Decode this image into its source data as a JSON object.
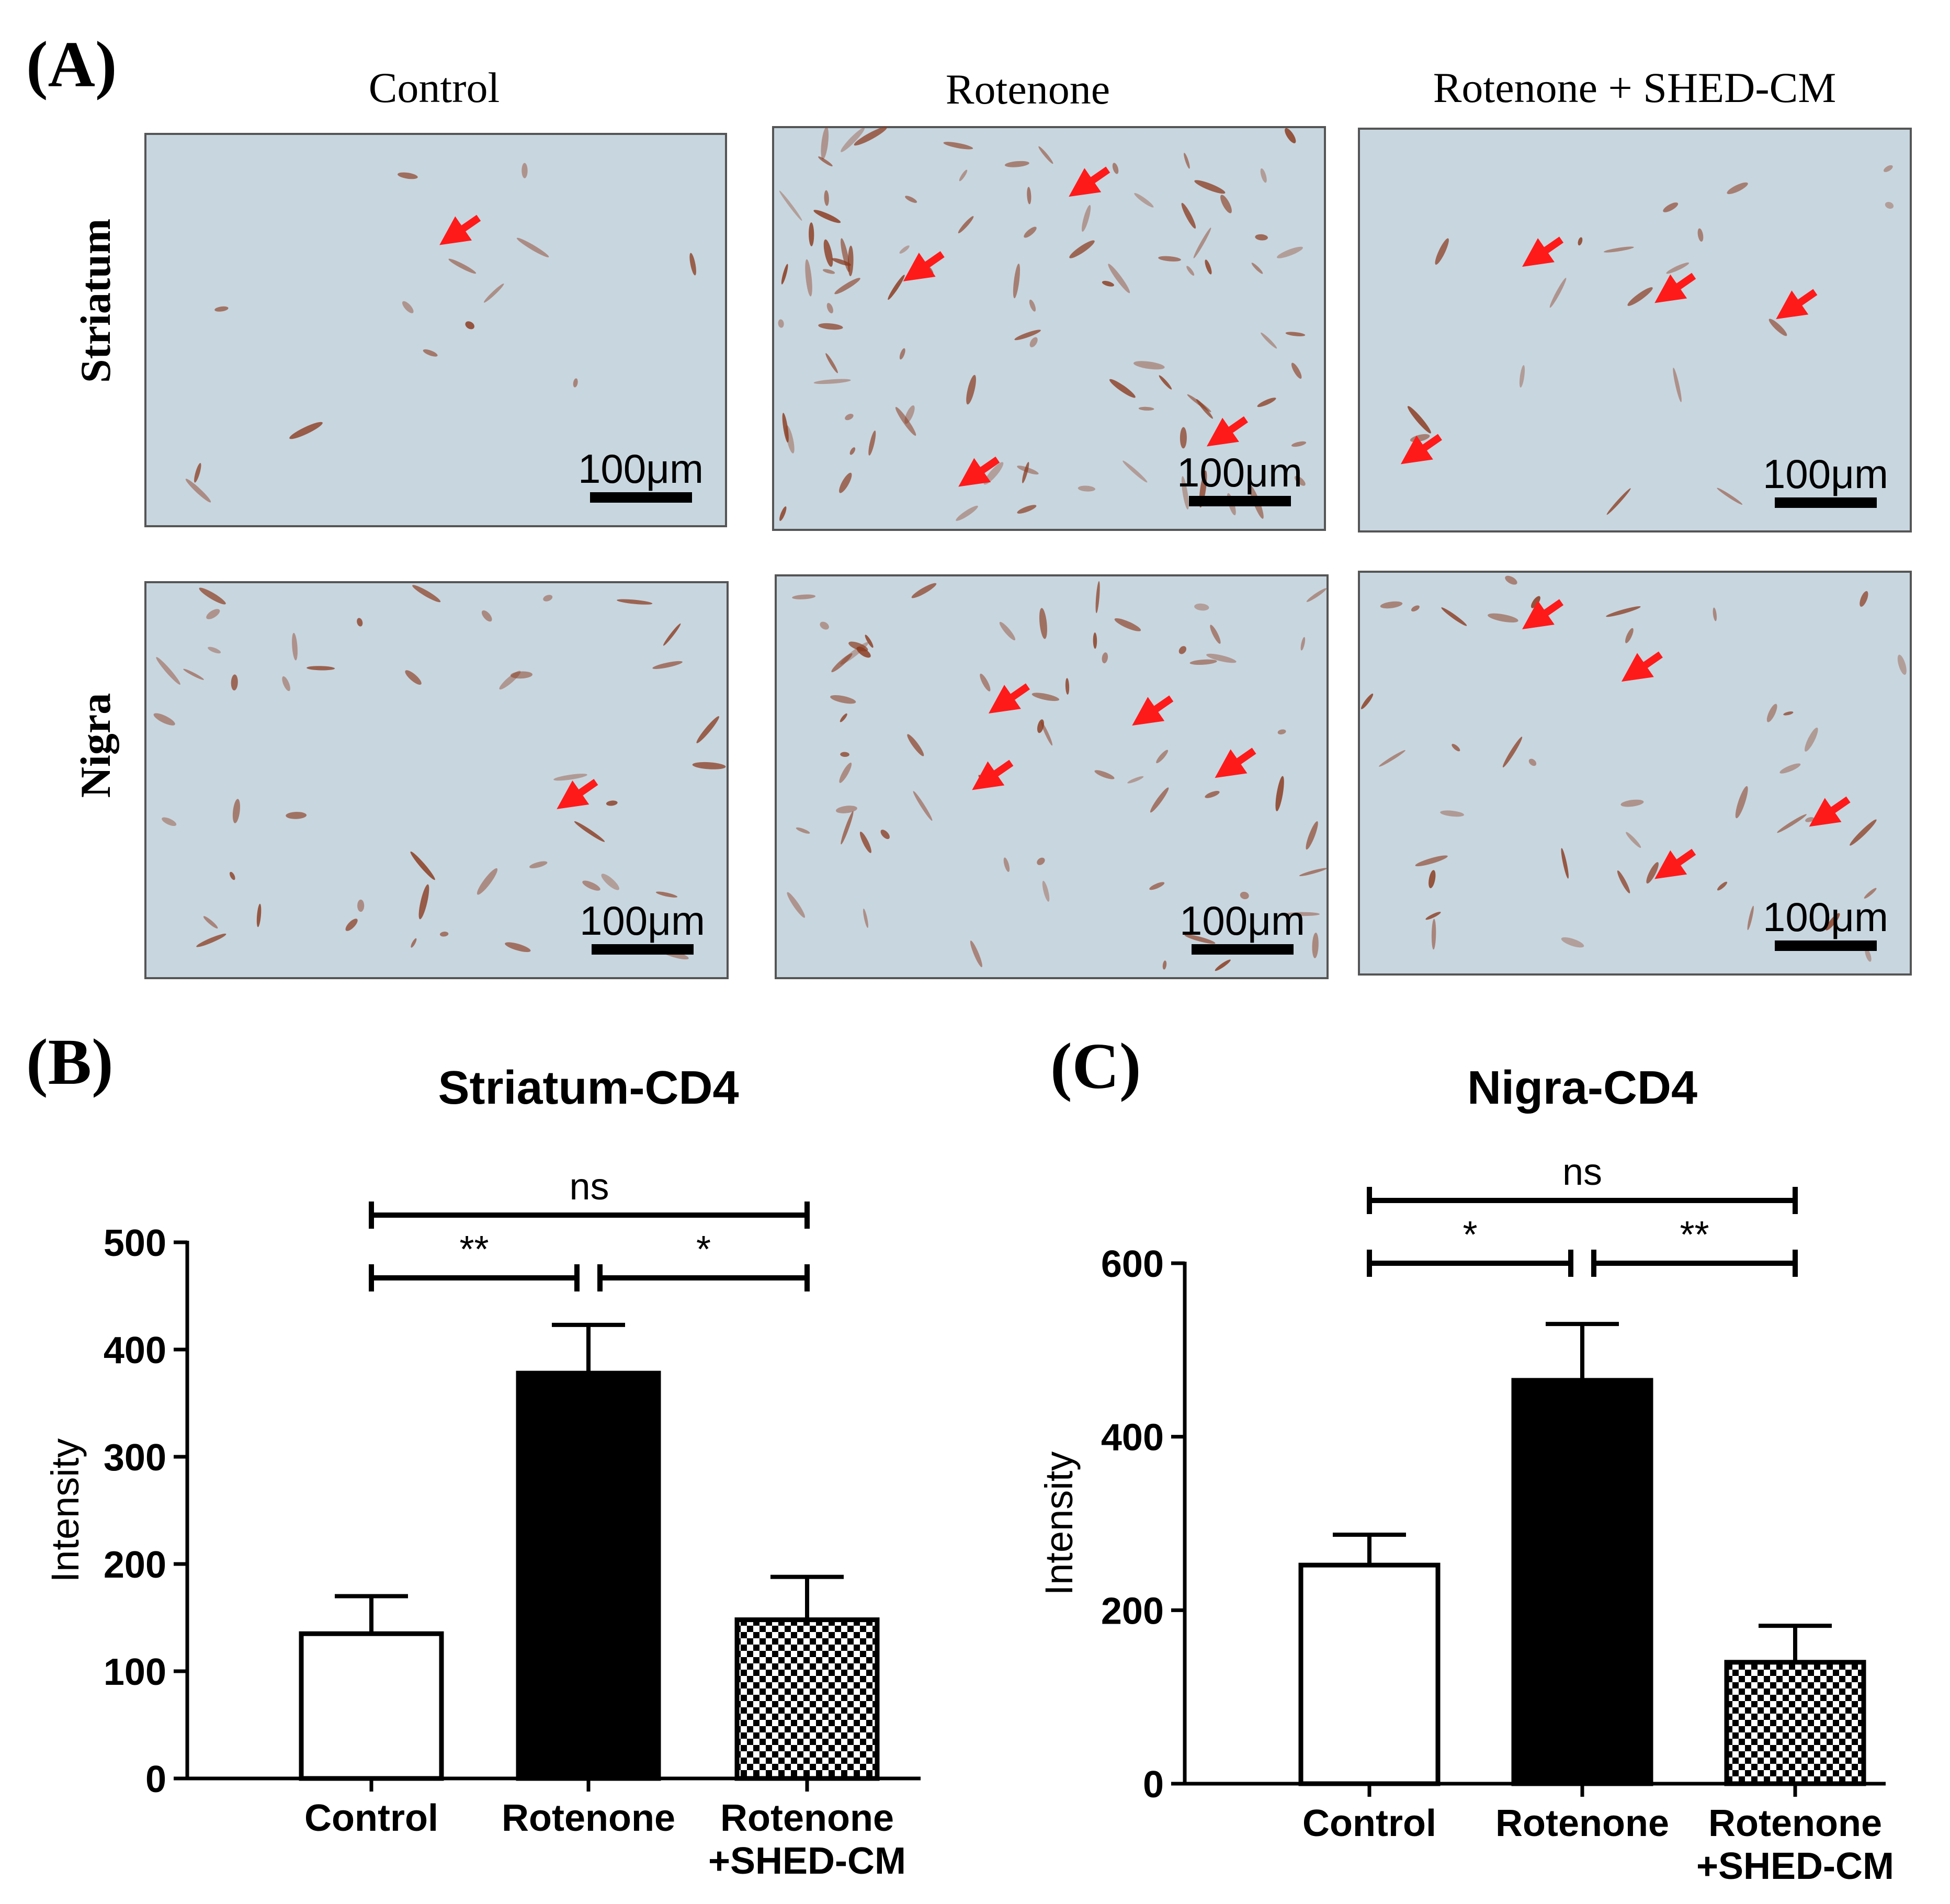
{
  "figure": {
    "panel_a": {
      "label": "(A)",
      "columns": [
        "Control",
        "Rotenone",
        "Rotenone + SHED-CM"
      ],
      "rows": [
        "Striatum",
        "Nigra"
      ],
      "scale_bar_text": "100μm",
      "arrow_color": "#ff1a1a",
      "tissue_color": "#c8d6df",
      "stain_color": "#8a3a1e"
    },
    "panel_b": {
      "label": "(B)"
    },
    "panel_c": {
      "label": "(C)"
    }
  },
  "chart_data": [
    {
      "type": "bar",
      "title": "Striatum-CD4",
      "ylabel": "Intensity",
      "categories": [
        "Control",
        "Rotenone",
        "Rotenone\n+SHED-CM"
      ],
      "values": [
        135,
        378,
        148
      ],
      "errors": [
        35,
        45,
        40
      ],
      "ylim": [
        0,
        500
      ],
      "yticks": [
        0,
        100,
        200,
        300,
        400,
        500
      ],
      "fills": [
        "white",
        "black",
        "checker"
      ],
      "significance": [
        {
          "from": 0,
          "to": 1,
          "label": "**",
          "level": 1
        },
        {
          "from": 1,
          "to": 2,
          "label": "*",
          "level": 1
        },
        {
          "from": 0,
          "to": 2,
          "label": "ns",
          "level": 2
        }
      ]
    },
    {
      "type": "bar",
      "title": "Nigra-CD4",
      "ylabel": "Intensity",
      "categories": [
        "Control",
        "Rotenone",
        "Rotenone\n+SHED-CM"
      ],
      "values": [
        252,
        465,
        140
      ],
      "errors": [
        35,
        65,
        42
      ],
      "ylim": [
        0,
        600
      ],
      "yticks": [
        0,
        200,
        400,
        600
      ],
      "fills": [
        "white",
        "black",
        "checker"
      ],
      "significance": [
        {
          "from": 0,
          "to": 1,
          "label": "*",
          "level": 1
        },
        {
          "from": 1,
          "to": 2,
          "label": "**",
          "level": 1
        },
        {
          "from": 0,
          "to": 2,
          "label": "ns",
          "level": 2
        }
      ]
    }
  ]
}
